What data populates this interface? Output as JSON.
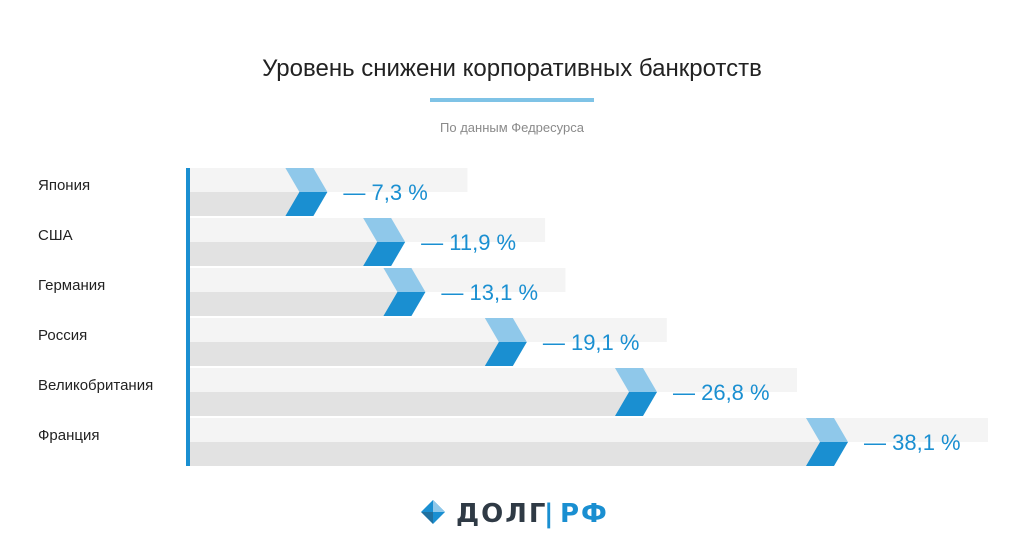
{
  "chart_data": {
    "type": "bar",
    "orientation": "horizontal",
    "title": "Уровень снижени корпоративных банкротств",
    "subtitle": "По данным Федресурса",
    "categories": [
      "Япония",
      "США",
      "Германия",
      "Россия",
      "Великобритания",
      "Франция"
    ],
    "values": [
      7.3,
      11.9,
      13.1,
      19.1,
      26.8,
      38.1
    ],
    "value_labels": [
      "— 7,3 %",
      "— 11,9 %",
      "— 13,1 %",
      "— 19,1 %",
      "— 26,8 %",
      "— 38,1 %"
    ],
    "grid": false,
    "legend": "none"
  },
  "colors": {
    "accent": "#1a8fd1",
    "accent_light": "#8fc8ea",
    "bar_light": "#f4f4f4",
    "bar_dark": "#e2e2e2",
    "axis": "#1a8fd1",
    "title_underline": "#7fc3e6"
  },
  "logo": {
    "icon": "diamond-logo-icon",
    "text_main": "ДОЛГ",
    "separator": "|",
    "text_suffix": "РФ"
  }
}
